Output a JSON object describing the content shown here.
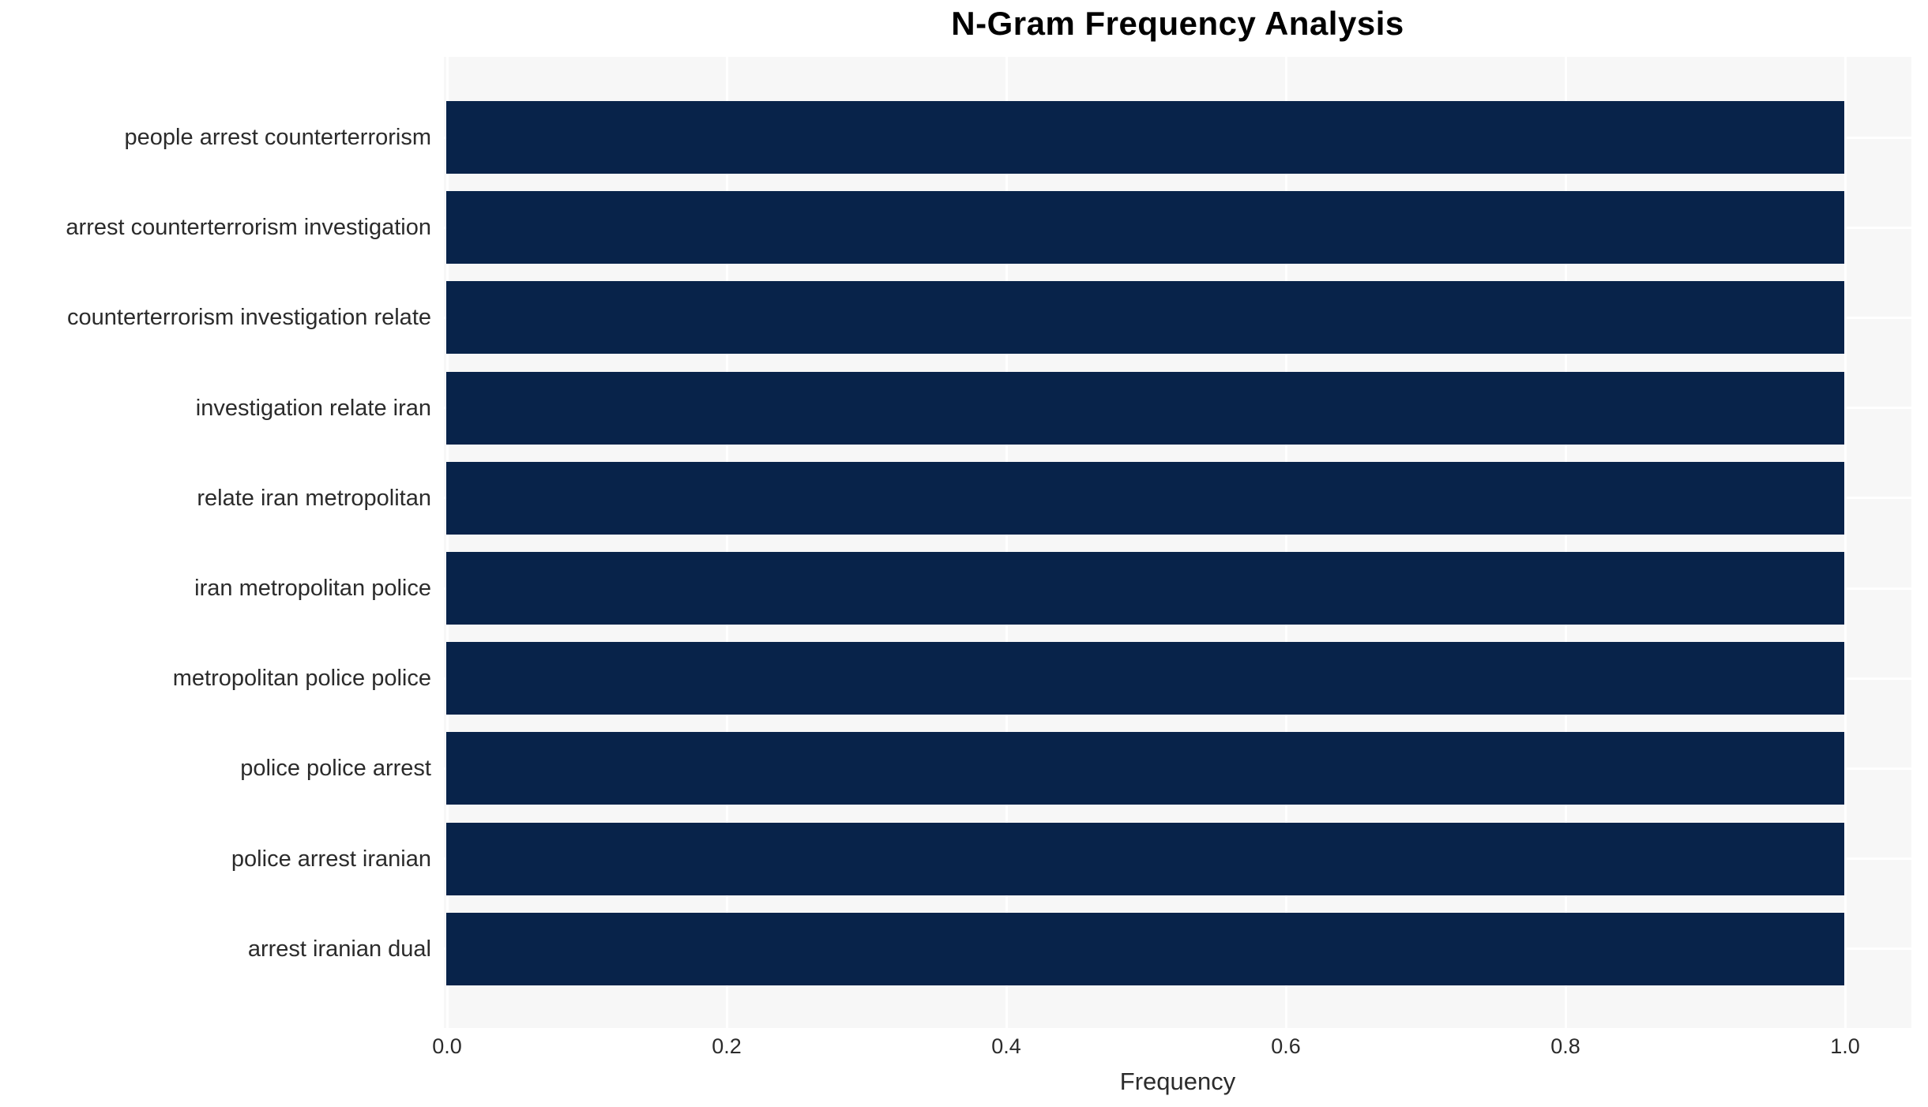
{
  "chart_data": {
    "type": "bar",
    "orientation": "horizontal",
    "title": "N-Gram Frequency Analysis",
    "xlabel": "Frequency",
    "ylabel": "",
    "categories": [
      "people arrest counterterrorism",
      "arrest counterterrorism investigation",
      "counterterrorism investigation relate",
      "investigation relate iran",
      "relate iran metropolitan",
      "iran metropolitan police",
      "metropolitan police police",
      "police police arrest",
      "police arrest iranian",
      "arrest iranian dual"
    ],
    "values": [
      1.0,
      1.0,
      1.0,
      1.0,
      1.0,
      1.0,
      1.0,
      1.0,
      1.0,
      1.0
    ],
    "xticks": [
      "0.0",
      "0.2",
      "0.4",
      "0.6",
      "0.8",
      "1.0"
    ],
    "xtick_values": [
      0.0,
      0.2,
      0.4,
      0.6,
      0.8,
      1.0
    ],
    "xlim": [
      0,
      1.05
    ],
    "grid": true,
    "legend": false,
    "colors": {
      "bar": "#08234a",
      "plot_bg": "#f7f7f7",
      "grid": "#ffffff",
      "tick_text": "#2b2b2b",
      "title_text": "#000000"
    }
  }
}
